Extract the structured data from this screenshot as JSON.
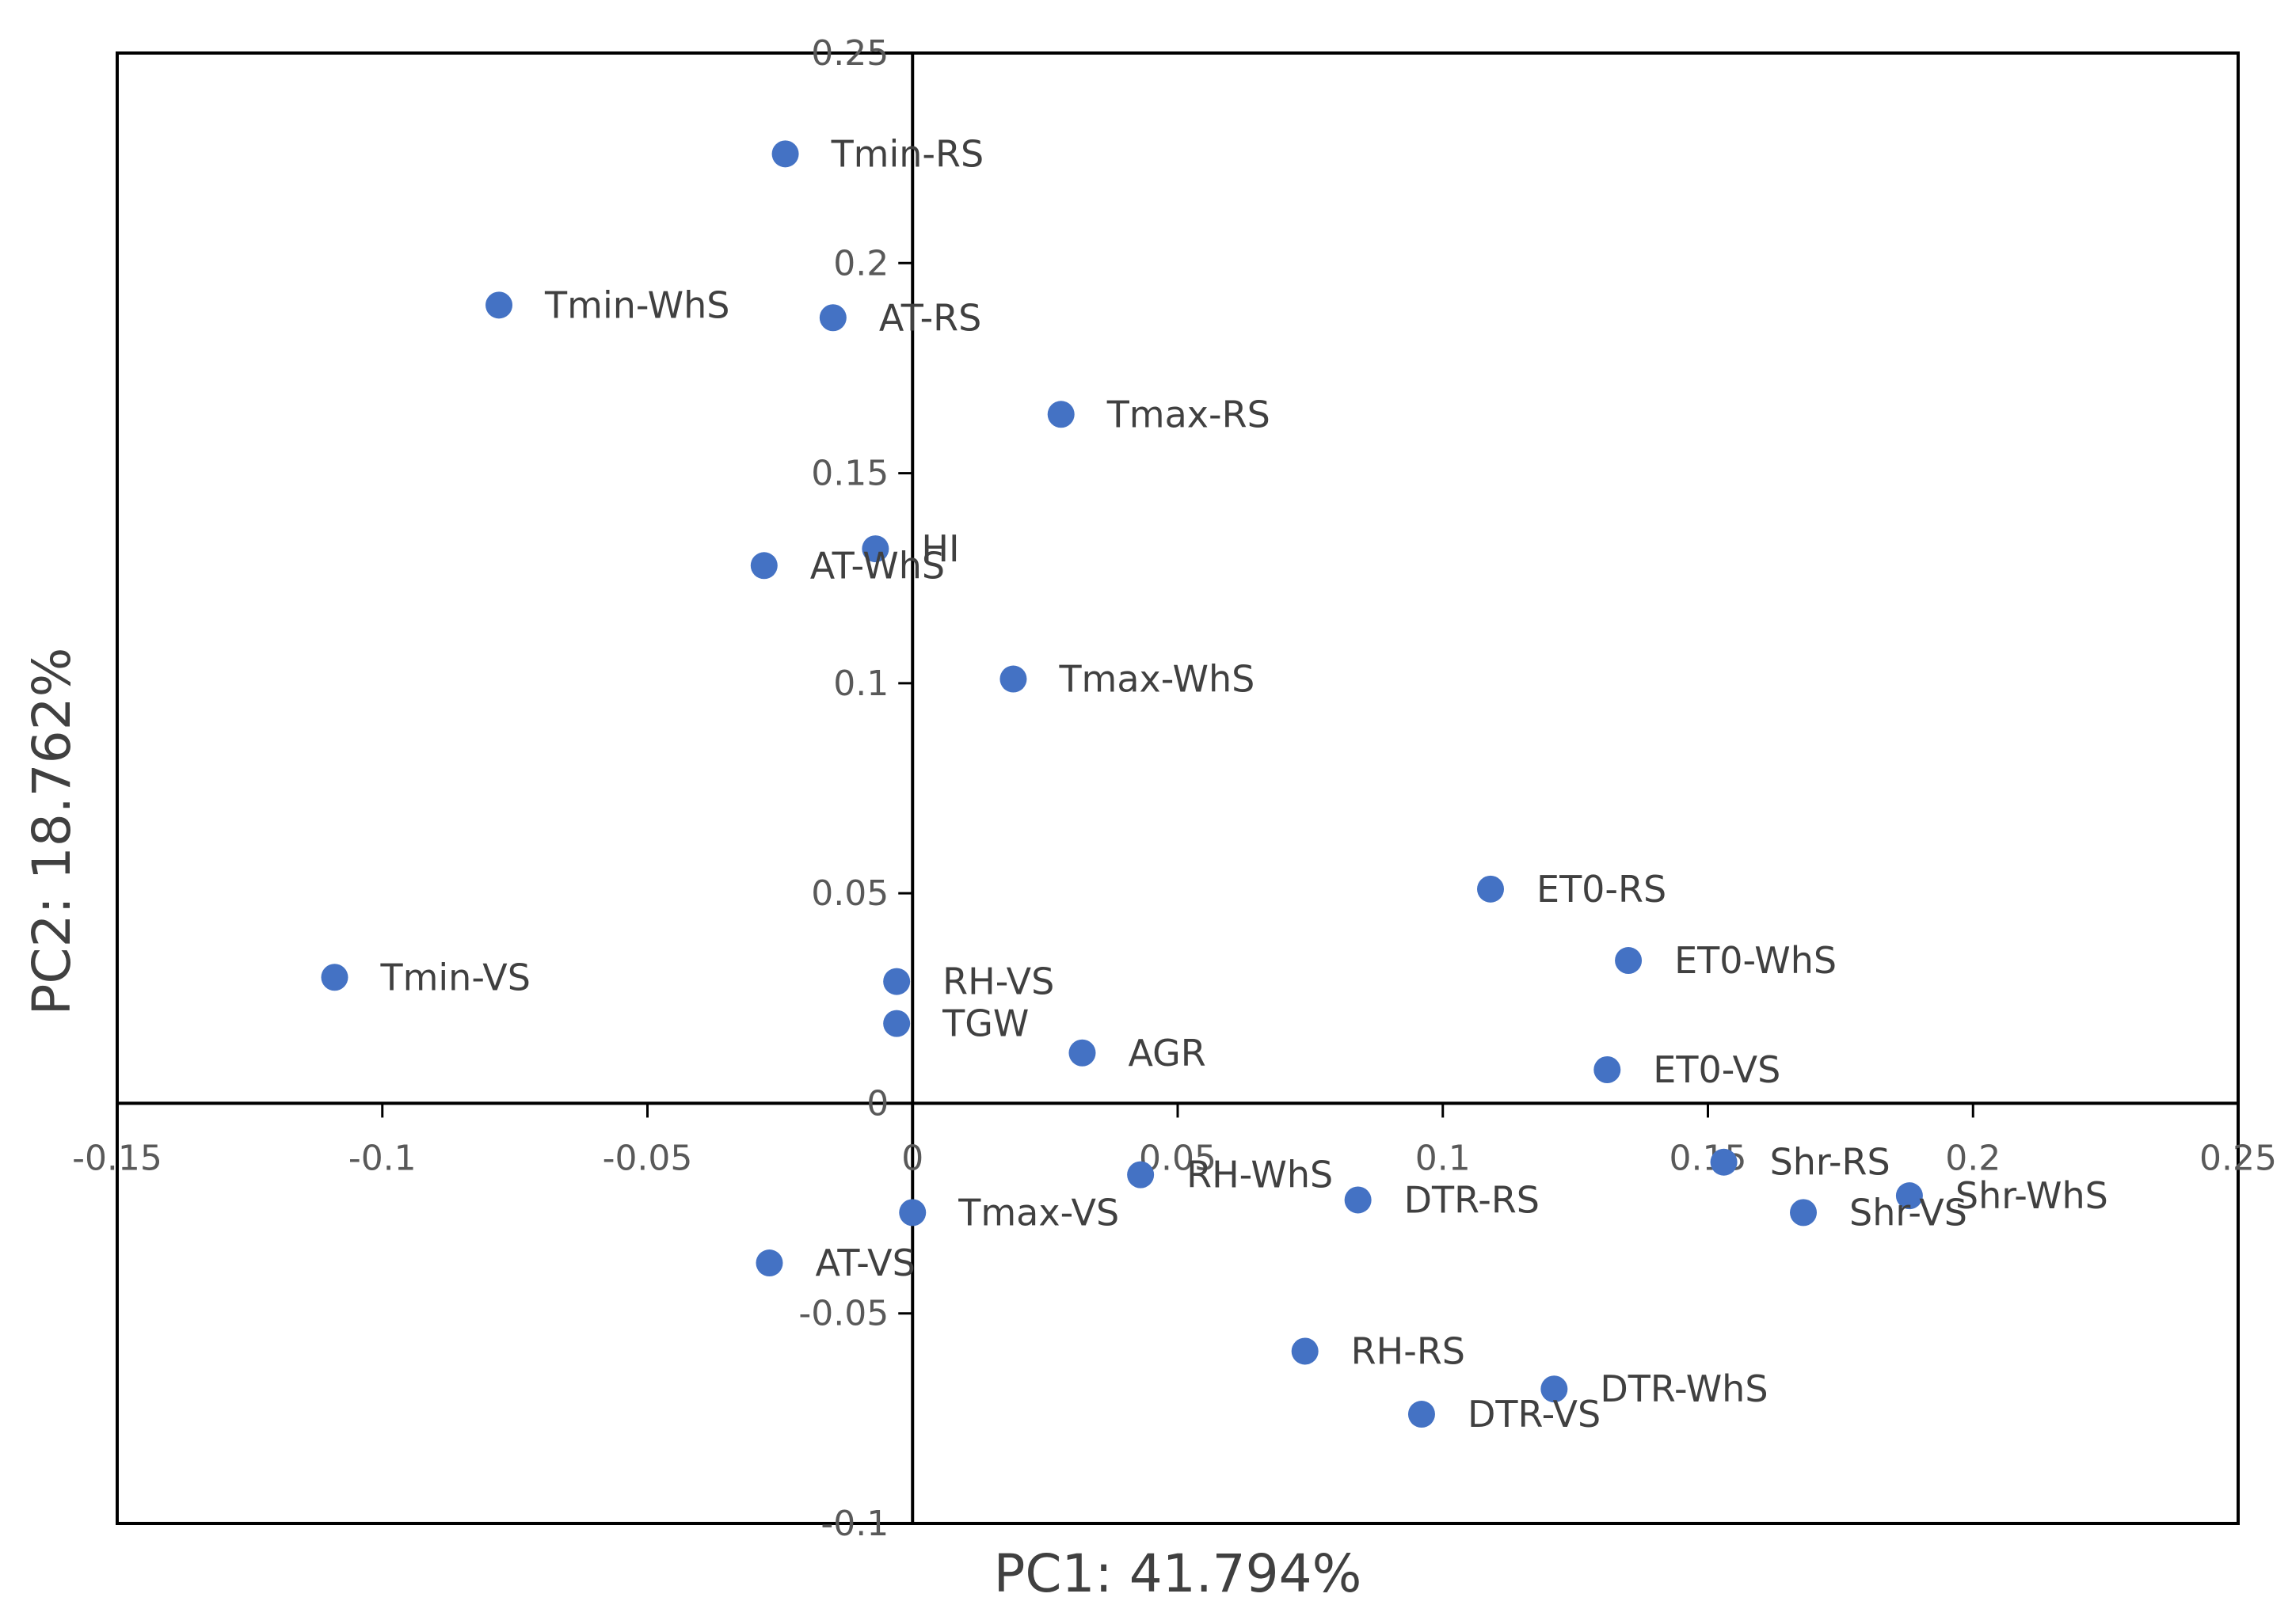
{
  "chart_data": {
    "type": "scatter",
    "title": "",
    "xlabel": "PC1: 41.794%",
    "ylabel": "PC2: 18.762%",
    "xlim": [
      -0.15,
      0.25
    ],
    "ylim": [
      -0.1,
      0.25
    ],
    "xticks": [
      -0.15,
      -0.1,
      -0.05,
      0,
      0.05,
      0.1,
      0.15,
      0.2,
      0.25
    ],
    "yticks": [
      -0.1,
      -0.05,
      0,
      0.05,
      0.1,
      0.15,
      0.2,
      0.25
    ],
    "xtick_labels": [
      "-0.15",
      "-0.1",
      "-0.05",
      "0",
      "0.05",
      "0.1",
      "0.15",
      "0.2",
      "0.25"
    ],
    "ytick_labels": [
      "-0.1",
      "-0.05",
      "0",
      "0.05",
      "0.1",
      "0.15",
      "0.2",
      "0.25"
    ],
    "marker_color": "#4472C4",
    "points": [
      {
        "label": "Tmin-RS",
        "x": -0.024,
        "y": 0.226
      },
      {
        "label": "Tmin-WhS",
        "x": -0.078,
        "y": 0.19
      },
      {
        "label": "AT-RS",
        "x": -0.015,
        "y": 0.187
      },
      {
        "label": "Tmax-RS",
        "x": 0.028,
        "y": 0.164
      },
      {
        "label": "HI",
        "x": -0.007,
        "y": 0.132
      },
      {
        "label": "AT-WhS",
        "x": -0.028,
        "y": 0.128
      },
      {
        "label": "Tmax-WhS",
        "x": 0.019,
        "y": 0.101
      },
      {
        "label": "ET0-RS",
        "x": 0.109,
        "y": 0.051
      },
      {
        "label": "ET0-WhS",
        "x": 0.135,
        "y": 0.034
      },
      {
        "label": "Tmin-VS",
        "x": -0.109,
        "y": 0.03
      },
      {
        "label": "RH-VS",
        "x": -0.003,
        "y": 0.029
      },
      {
        "label": "TGW",
        "x": -0.003,
        "y": 0.019
      },
      {
        "label": "AGR",
        "x": 0.032,
        "y": 0.012
      },
      {
        "label": "ET0-VS",
        "x": 0.131,
        "y": 0.008
      },
      {
        "label": "Shr-RS",
        "x": 0.153,
        "y": -0.014
      },
      {
        "label": "RH-WhS",
        "x": 0.043,
        "y": -0.017
      },
      {
        "label": "Shr-WhS",
        "x": 0.188,
        "y": -0.022
      },
      {
        "label": "DTR-RS",
        "x": 0.084,
        "y": -0.023
      },
      {
        "label": "Shr-VS",
        "x": 0.168,
        "y": -0.026
      },
      {
        "label": "Tmax-VS",
        "x": 0.0,
        "y": -0.026
      },
      {
        "label": "AT-VS",
        "x": -0.027,
        "y": -0.038
      },
      {
        "label": "RH-RS",
        "x": 0.074,
        "y": -0.059
      },
      {
        "label": "DTR-WhS",
        "x": 0.121,
        "y": -0.068
      },
      {
        "label": "DTR-VS",
        "x": 0.096,
        "y": -0.074
      }
    ]
  }
}
